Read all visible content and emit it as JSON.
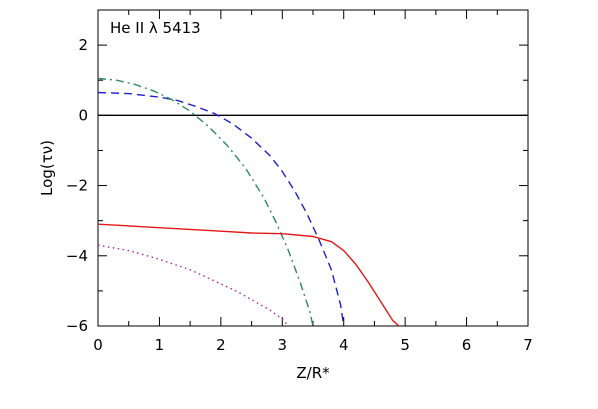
{
  "chart_data": {
    "type": "line",
    "title": "He II λ 5413",
    "xlabel": "Z/R*",
    "ylabel": "Log(τν)",
    "xlim": [
      0,
      7
    ],
    "ylim": [
      -6,
      3
    ],
    "x_ticks": [
      "0",
      "1",
      "2",
      "3",
      "4",
      "5",
      "6",
      "7"
    ],
    "y_ticks": [
      "−6",
      "−4",
      "−2",
      "0",
      "2"
    ],
    "grid": false,
    "hline": {
      "y": 0,
      "color": "#000000",
      "style": "solid"
    },
    "series": [
      {
        "style": "dashed",
        "color": "#1f1fd0",
        "x": [
          0,
          0.5,
          1.0,
          1.3,
          1.6,
          1.9,
          2.2,
          2.5,
          2.8,
          3.0,
          3.2,
          3.4,
          3.6,
          3.8,
          3.95,
          4.0
        ],
        "y": [
          0.65,
          0.62,
          0.52,
          0.42,
          0.25,
          0.05,
          -0.25,
          -0.65,
          -1.15,
          -1.6,
          -2.15,
          -2.8,
          -3.55,
          -4.4,
          -5.4,
          -6.0
        ]
      },
      {
        "style": "dashdot",
        "color": "#2e8b57",
        "x": [
          0,
          0.3,
          0.6,
          0.9,
          1.2,
          1.5,
          1.8,
          2.1,
          2.4,
          2.7,
          2.9,
          3.1,
          3.3,
          3.45,
          3.5
        ],
        "y": [
          1.05,
          1.0,
          0.88,
          0.7,
          0.45,
          0.12,
          -0.32,
          -0.85,
          -1.5,
          -2.35,
          -3.05,
          -3.85,
          -4.8,
          -5.6,
          -6.0
        ]
      },
      {
        "style": "solid",
        "color": "#e01a1a",
        "x": [
          0,
          0.5,
          1.0,
          1.5,
          2.0,
          2.5,
          3.0,
          3.5,
          3.8,
          4.0,
          4.2,
          4.4,
          4.6,
          4.8,
          4.9
        ],
        "y": [
          -3.1,
          -3.15,
          -3.2,
          -3.25,
          -3.3,
          -3.35,
          -3.37,
          -3.45,
          -3.6,
          -3.85,
          -4.25,
          -4.75,
          -5.3,
          -5.85,
          -6.0
        ]
      },
      {
        "style": "dotted",
        "color": "#b01fb0",
        "x": [
          0,
          0.5,
          1.0,
          1.5,
          2.0,
          2.3,
          2.6,
          2.8,
          3.0,
          3.1
        ],
        "y": [
          -3.7,
          -3.85,
          -4.1,
          -4.4,
          -4.8,
          -5.05,
          -5.35,
          -5.55,
          -5.8,
          -6.0
        ]
      }
    ]
  }
}
